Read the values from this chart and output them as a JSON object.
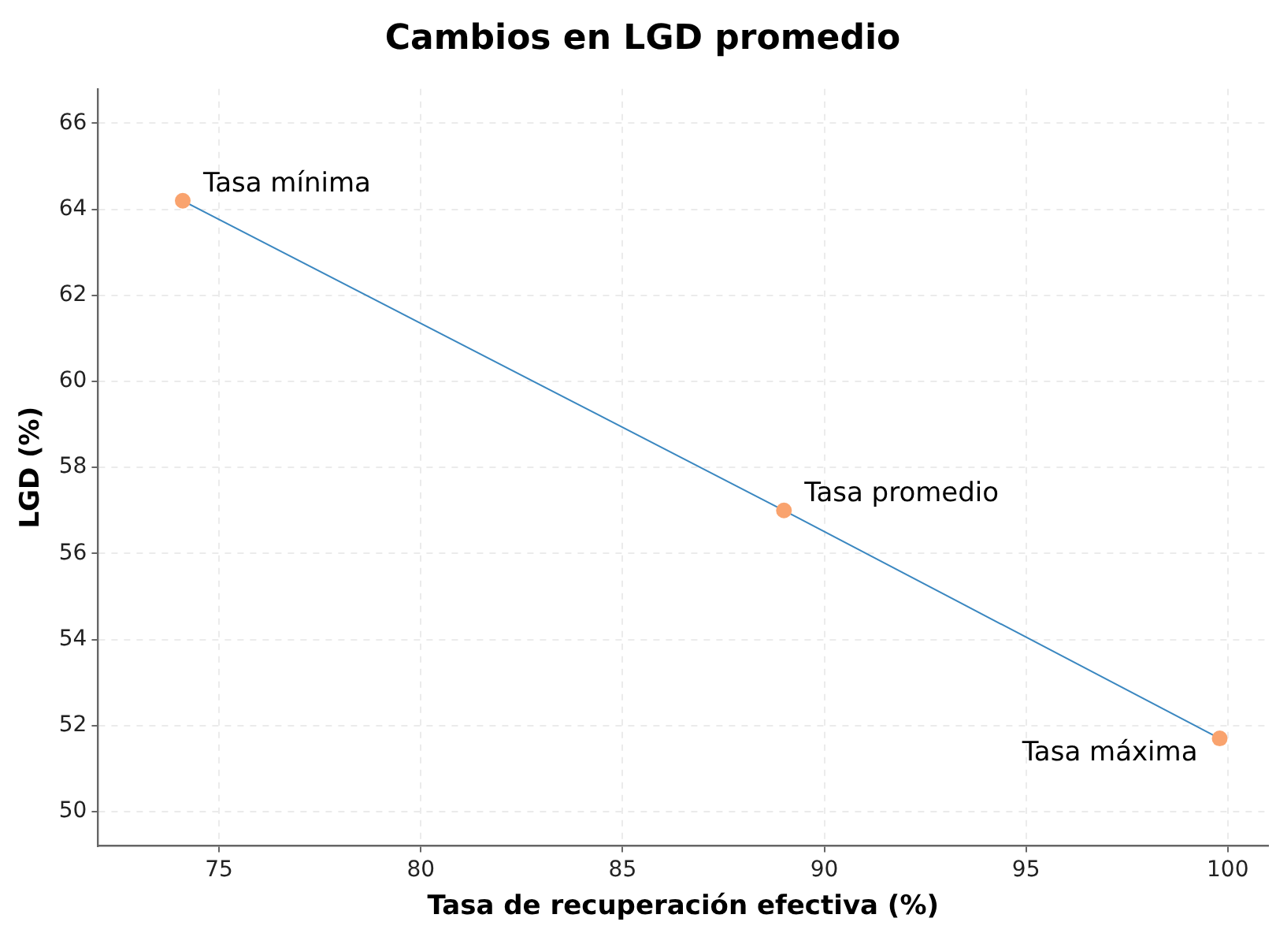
{
  "chart_data": {
    "type": "line",
    "title": "Cambios en LGD promedio",
    "xlabel": "Tasa de recuperación efectiva (%)",
    "ylabel": "LGD (%)",
    "x": [
      74.1,
      89.0,
      99.8
    ],
    "series": [
      {
        "color": "#3a87c0",
        "values": [
          64.2,
          57.0,
          51.7
        ],
        "marker": "none"
      },
      {
        "type": "scatter",
        "color": "#f9a36e",
        "values": [
          64.2,
          57.0,
          51.7
        ],
        "marker": "circle"
      }
    ],
    "xlim": [
      72,
      101
    ],
    "xticks": [
      75,
      80,
      85,
      90,
      95,
      100
    ],
    "ylim": [
      49.2,
      66.8
    ],
    "yticks": [
      50,
      52,
      54,
      56,
      58,
      60,
      62,
      64,
      66
    ],
    "grid": true,
    "legend": false,
    "line_style": "solid",
    "annotations": [
      {
        "text": "Tasa mínima",
        "x": 74.1,
        "y": 64.2
      },
      {
        "text": "Tasa promedio",
        "x": 89.0,
        "y": 57.0
      },
      {
        "text": "Tasa máxima",
        "x": 99.8,
        "y": 51.7
      }
    ]
  }
}
